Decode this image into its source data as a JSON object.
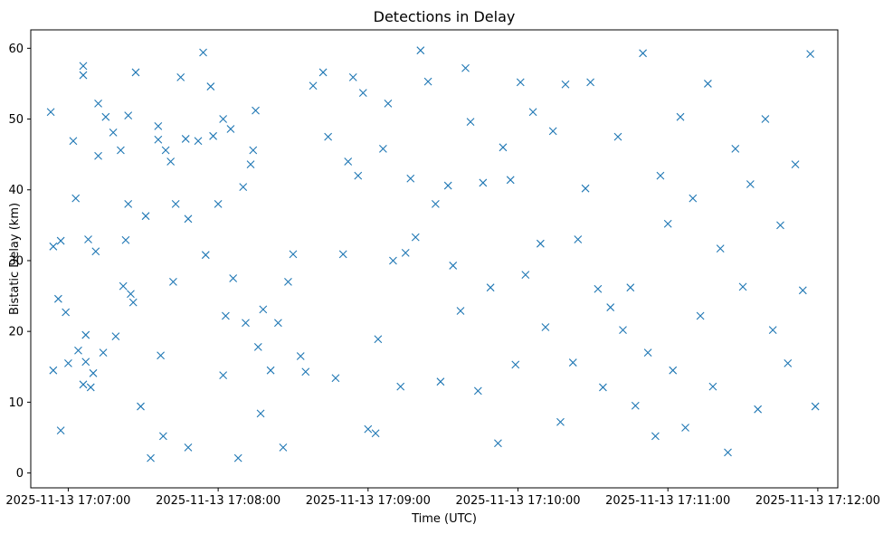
{
  "chart_data": {
    "type": "scatter",
    "title": "Detections in Delay",
    "xlabel": "Time (UTC)",
    "ylabel": "Bistatic Delay (km)",
    "marker": "x",
    "color": "#1f77b4",
    "grid": false,
    "legend": "none",
    "xlim": [
      "2025-11-13 17:06:45",
      "2025-11-13 17:12:08"
    ],
    "ylim": [
      -2.1,
      62.6
    ],
    "x_ticks": [
      "2025-11-13 17:07:00",
      "2025-11-13 17:08:00",
      "2025-11-13 17:09:00",
      "2025-11-13 17:10:00",
      "2025-11-13 17:11:00",
      "2025-11-13 17:12:00"
    ],
    "y_ticks": [
      0,
      10,
      20,
      30,
      40,
      50,
      60
    ],
    "points": [
      [
        "2025-11-13 17:06:53",
        51.0
      ],
      [
        "2025-11-13 17:06:54",
        32.0
      ],
      [
        "2025-11-13 17:06:54",
        14.5
      ],
      [
        "2025-11-13 17:06:56",
        24.6
      ],
      [
        "2025-11-13 17:06:57",
        32.8
      ],
      [
        "2025-11-13 17:06:57",
        6.0
      ],
      [
        "2025-11-13 17:06:59",
        22.7
      ],
      [
        "2025-11-13 17:07:00",
        15.5
      ],
      [
        "2025-11-13 17:07:02",
        46.9
      ],
      [
        "2025-11-13 17:07:03",
        38.8
      ],
      [
        "2025-11-13 17:07:04",
        17.3
      ],
      [
        "2025-11-13 17:07:06",
        57.5
      ],
      [
        "2025-11-13 17:07:06",
        56.2
      ],
      [
        "2025-11-13 17:07:06",
        12.5
      ],
      [
        "2025-11-13 17:07:07",
        19.5
      ],
      [
        "2025-11-13 17:07:07",
        15.7
      ],
      [
        "2025-11-13 17:07:08",
        33.0
      ],
      [
        "2025-11-13 17:07:09",
        12.1
      ],
      [
        "2025-11-13 17:07:10",
        14.1
      ],
      [
        "2025-11-13 17:07:11",
        31.3
      ],
      [
        "2025-11-13 17:07:12",
        44.8
      ],
      [
        "2025-11-13 17:07:12",
        52.2
      ],
      [
        "2025-11-13 17:07:14",
        17.0
      ],
      [
        "2025-11-13 17:07:15",
        50.3
      ],
      [
        "2025-11-13 17:07:18",
        48.1
      ],
      [
        "2025-11-13 17:07:19",
        19.3
      ],
      [
        "2025-11-13 17:07:21",
        45.6
      ],
      [
        "2025-11-13 17:07:22",
        26.4
      ],
      [
        "2025-11-13 17:07:23",
        32.9
      ],
      [
        "2025-11-13 17:07:24",
        50.5
      ],
      [
        "2025-11-13 17:07:24",
        38.0
      ],
      [
        "2025-11-13 17:07:25",
        25.3
      ],
      [
        "2025-11-13 17:07:26",
        24.1
      ],
      [
        "2025-11-13 17:07:27",
        56.6
      ],
      [
        "2025-11-13 17:07:29",
        9.4
      ],
      [
        "2025-11-13 17:07:31",
        36.3
      ],
      [
        "2025-11-13 17:07:33",
        2.1
      ],
      [
        "2025-11-13 17:07:36",
        49.0
      ],
      [
        "2025-11-13 17:07:36",
        47.1
      ],
      [
        "2025-11-13 17:07:37",
        16.6
      ],
      [
        "2025-11-13 17:07:38",
        5.2
      ],
      [
        "2025-11-13 17:07:39",
        45.6
      ],
      [
        "2025-11-13 17:07:41",
        44.0
      ],
      [
        "2025-11-13 17:07:42",
        27.0
      ],
      [
        "2025-11-13 17:07:43",
        38.0
      ],
      [
        "2025-11-13 17:07:45",
        55.9
      ],
      [
        "2025-11-13 17:07:47",
        47.2
      ],
      [
        "2025-11-13 17:07:48",
        35.9
      ],
      [
        "2025-11-13 17:07:48",
        3.6
      ],
      [
        "2025-11-13 17:07:52",
        46.9
      ],
      [
        "2025-11-13 17:07:54",
        59.4
      ],
      [
        "2025-11-13 17:07:55",
        30.8
      ],
      [
        "2025-11-13 17:07:57",
        54.6
      ],
      [
        "2025-11-13 17:07:58",
        47.6
      ],
      [
        "2025-11-13 17:08:00",
        38.0
      ],
      [
        "2025-11-13 17:08:02",
        50.0
      ],
      [
        "2025-11-13 17:08:02",
        13.8
      ],
      [
        "2025-11-13 17:08:03",
        22.2
      ],
      [
        "2025-11-13 17:08:05",
        48.6
      ],
      [
        "2025-11-13 17:08:06",
        27.5
      ],
      [
        "2025-11-13 17:08:08",
        2.1
      ],
      [
        "2025-11-13 17:08:10",
        40.4
      ],
      [
        "2025-11-13 17:08:11",
        21.2
      ],
      [
        "2025-11-13 17:08:13",
        43.6
      ],
      [
        "2025-11-13 17:08:14",
        45.6
      ],
      [
        "2025-11-13 17:08:15",
        51.2
      ],
      [
        "2025-11-13 17:08:16",
        17.8
      ],
      [
        "2025-11-13 17:08:17",
        8.4
      ],
      [
        "2025-11-13 17:08:18",
        23.1
      ],
      [
        "2025-11-13 17:08:21",
        14.5
      ],
      [
        "2025-11-13 17:08:24",
        21.2
      ],
      [
        "2025-11-13 17:08:26",
        3.6
      ],
      [
        "2025-11-13 17:08:28",
        27.0
      ],
      [
        "2025-11-13 17:08:30",
        30.9
      ],
      [
        "2025-11-13 17:08:33",
        16.5
      ],
      [
        "2025-11-13 17:08:35",
        14.3
      ],
      [
        "2025-11-13 17:08:38",
        54.7
      ],
      [
        "2025-11-13 17:08:42",
        56.6
      ],
      [
        "2025-11-13 17:08:44",
        47.5
      ],
      [
        "2025-11-13 17:08:47",
        13.4
      ],
      [
        "2025-11-13 17:08:50",
        30.9
      ],
      [
        "2025-11-13 17:08:52",
        44.0
      ],
      [
        "2025-11-13 17:08:54",
        55.9
      ],
      [
        "2025-11-13 17:08:56",
        42.0
      ],
      [
        "2025-11-13 17:08:58",
        53.7
      ],
      [
        "2025-11-13 17:09:00",
        6.2
      ],
      [
        "2025-11-13 17:09:03",
        5.6
      ],
      [
        "2025-11-13 17:09:04",
        18.9
      ],
      [
        "2025-11-13 17:09:06",
        45.8
      ],
      [
        "2025-11-13 17:09:08",
        52.2
      ],
      [
        "2025-11-13 17:09:10",
        30.0
      ],
      [
        "2025-11-13 17:09:13",
        12.2
      ],
      [
        "2025-11-13 17:09:15",
        31.1
      ],
      [
        "2025-11-13 17:09:17",
        41.6
      ],
      [
        "2025-11-13 17:09:19",
        33.3
      ],
      [
        "2025-11-13 17:09:21",
        59.7
      ],
      [
        "2025-11-13 17:09:24",
        55.3
      ],
      [
        "2025-11-13 17:09:27",
        38.0
      ],
      [
        "2025-11-13 17:09:29",
        12.9
      ],
      [
        "2025-11-13 17:09:32",
        40.6
      ],
      [
        "2025-11-13 17:09:34",
        29.3
      ],
      [
        "2025-11-13 17:09:37",
        22.9
      ],
      [
        "2025-11-13 17:09:39",
        57.2
      ],
      [
        "2025-11-13 17:09:41",
        49.6
      ],
      [
        "2025-11-13 17:09:44",
        11.6
      ],
      [
        "2025-11-13 17:09:46",
        41.0
      ],
      [
        "2025-11-13 17:09:49",
        26.2
      ],
      [
        "2025-11-13 17:09:52",
        4.2
      ],
      [
        "2025-11-13 17:09:54",
        46.0
      ],
      [
        "2025-11-13 17:09:57",
        41.4
      ],
      [
        "2025-11-13 17:09:59",
        15.3
      ],
      [
        "2025-11-13 17:10:01",
        55.2
      ],
      [
        "2025-11-13 17:10:03",
        28.0
      ],
      [
        "2025-11-13 17:10:06",
        51.0
      ],
      [
        "2025-11-13 17:10:09",
        32.4
      ],
      [
        "2025-11-13 17:10:11",
        20.6
      ],
      [
        "2025-11-13 17:10:14",
        48.3
      ],
      [
        "2025-11-13 17:10:17",
        7.2
      ],
      [
        "2025-11-13 17:10:19",
        54.9
      ],
      [
        "2025-11-13 17:10:22",
        15.6
      ],
      [
        "2025-11-13 17:10:24",
        33.0
      ],
      [
        "2025-11-13 17:10:27",
        40.2
      ],
      [
        "2025-11-13 17:10:29",
        55.2
      ],
      [
        "2025-11-13 17:10:32",
        26.0
      ],
      [
        "2025-11-13 17:10:34",
        12.1
      ],
      [
        "2025-11-13 17:10:37",
        23.4
      ],
      [
        "2025-11-13 17:10:40",
        47.5
      ],
      [
        "2025-11-13 17:10:42",
        20.2
      ],
      [
        "2025-11-13 17:10:45",
        26.2
      ],
      [
        "2025-11-13 17:10:47",
        9.5
      ],
      [
        "2025-11-13 17:10:50",
        59.3
      ],
      [
        "2025-11-13 17:10:52",
        17.0
      ],
      [
        "2025-11-13 17:10:55",
        5.2
      ],
      [
        "2025-11-13 17:10:57",
        42.0
      ],
      [
        "2025-11-13 17:11:00",
        35.2
      ],
      [
        "2025-11-13 17:11:02",
        14.5
      ],
      [
        "2025-11-13 17:11:05",
        50.3
      ],
      [
        "2025-11-13 17:11:07",
        6.4
      ],
      [
        "2025-11-13 17:11:10",
        38.8
      ],
      [
        "2025-11-13 17:11:13",
        22.2
      ],
      [
        "2025-11-13 17:11:16",
        55.0
      ],
      [
        "2025-11-13 17:11:18",
        12.2
      ],
      [
        "2025-11-13 17:11:21",
        31.7
      ],
      [
        "2025-11-13 17:11:24",
        2.9
      ],
      [
        "2025-11-13 17:11:27",
        45.8
      ],
      [
        "2025-11-13 17:11:30",
        26.3
      ],
      [
        "2025-11-13 17:11:33",
        40.8
      ],
      [
        "2025-11-13 17:11:36",
        9.0
      ],
      [
        "2025-11-13 17:11:39",
        50.0
      ],
      [
        "2025-11-13 17:11:42",
        20.2
      ],
      [
        "2025-11-13 17:11:45",
        35.0
      ],
      [
        "2025-11-13 17:11:48",
        15.5
      ],
      [
        "2025-11-13 17:11:51",
        43.6
      ],
      [
        "2025-11-13 17:11:54",
        25.8
      ],
      [
        "2025-11-13 17:11:57",
        59.2
      ],
      [
        "2025-11-13 17:11:59",
        9.4
      ]
    ]
  }
}
